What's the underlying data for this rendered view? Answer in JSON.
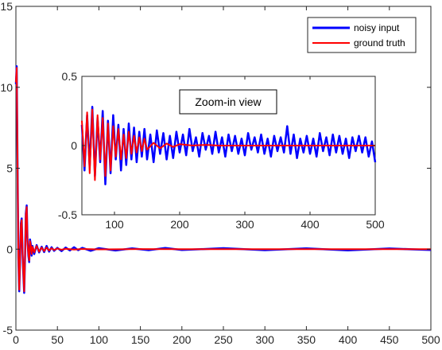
{
  "colors": {
    "noisy": "#0000ff",
    "truth": "#ff0000",
    "axis": "#262626",
    "background": "#ffffff"
  },
  "chart_data": [
    {
      "type": "line",
      "role": "main",
      "xlim": [
        0,
        500
      ],
      "ylim": [
        -5,
        15
      ],
      "xticks": [
        "0",
        "50",
        "100",
        "150",
        "200",
        "250",
        "300",
        "350",
        "400",
        "450",
        "500"
      ],
      "yticks": [
        "-5",
        "0",
        "5",
        "10",
        "15"
      ],
      "legend": {
        "placement": "top-right",
        "entries": [
          "noisy input",
          "ground truth"
        ]
      },
      "series": [
        {
          "name": "noisy input",
          "x": [
            0,
            1,
            2,
            3,
            4,
            5,
            6,
            7,
            8,
            9,
            10,
            11,
            12,
            13,
            14,
            15,
            16,
            17,
            18,
            19,
            20,
            22,
            25,
            28,
            31,
            34,
            37,
            40,
            43,
            46,
            50,
            55,
            60,
            65,
            70,
            75,
            80,
            90,
            100,
            120,
            140,
            160,
            180,
            200,
            250,
            300,
            350,
            400,
            450,
            500
          ],
          "y": [
            10.2,
            11.3,
            5.0,
            -0.5,
            -2.6,
            -0.8,
            1.6,
            1.9,
            -0.3,
            -1.6,
            -2.7,
            -0.5,
            2.2,
            2.7,
            0.5,
            -0.4,
            -0.8,
            0.6,
            0.3,
            -0.4,
            0.2,
            -0.3,
            0.25,
            -0.2,
            0.15,
            -0.18,
            0.2,
            -0.15,
            0.12,
            -0.1,
            0.08,
            -0.12,
            0.1,
            -0.08,
            0.12,
            -0.06,
            0.08,
            -0.1,
            0.06,
            -0.08,
            0.05,
            -0.06,
            0.07,
            -0.05,
            0.06,
            -0.06,
            0.05,
            -0.07,
            0.04,
            -0.05
          ]
        },
        {
          "name": "ground truth",
          "x": [
            0,
            1,
            2,
            3,
            4,
            5,
            6,
            7,
            8,
            9,
            10,
            11,
            12,
            13,
            14,
            15,
            16,
            17,
            18,
            19,
            20,
            22,
            25,
            28,
            31,
            34,
            37,
            40,
            43,
            46,
            50,
            55,
            60,
            70,
            80,
            100,
            150,
            200,
            300,
            400,
            500
          ],
          "y": [
            10.3,
            11.2,
            5.1,
            -0.4,
            -2.5,
            -0.7,
            1.5,
            1.8,
            -0.2,
            -1.5,
            -2.6,
            -0.4,
            2.1,
            2.6,
            0.4,
            -0.3,
            -0.7,
            0.5,
            0.2,
            -0.3,
            0.15,
            -0.2,
            0.2,
            -0.15,
            0.1,
            -0.12,
            0.1,
            -0.08,
            0.06,
            -0.05,
            0.04,
            -0.03,
            0.02,
            -0.02,
            0.01,
            -0.01,
            0.005,
            0,
            0,
            0,
            0
          ]
        }
      ]
    },
    {
      "type": "line",
      "role": "inset",
      "annotation": "Zoom-in view",
      "xlim": [
        50,
        500
      ],
      "ylim": [
        -0.5,
        0.5
      ],
      "xticks": [
        "100",
        "200",
        "300",
        "400",
        "500"
      ],
      "yticks": [
        "0.5",
        "0",
        "-0.5"
      ],
      "series": [
        {
          "name": "noisy input",
          "x": [
            50,
            54,
            58,
            62,
            66,
            70,
            74,
            78,
            82,
            86,
            90,
            94,
            98,
            102,
            106,
            110,
            114,
            118,
            122,
            126,
            130,
            134,
            138,
            142,
            146,
            150,
            155,
            160,
            165,
            170,
            175,
            180,
            185,
            190,
            195,
            200,
            205,
            210,
            215,
            220,
            225,
            230,
            235,
            240,
            245,
            250,
            255,
            260,
            265,
            270,
            275,
            280,
            285,
            290,
            295,
            300,
            305,
            310,
            315,
            320,
            325,
            330,
            335,
            340,
            345,
            350,
            355,
            360,
            365,
            370,
            375,
            380,
            385,
            390,
            395,
            400,
            405,
            410,
            415,
            420,
            425,
            430,
            435,
            440,
            445,
            450,
            455,
            460,
            465,
            470,
            475,
            480,
            485,
            490,
            495,
            500
          ],
          "y": [
            0.15,
            -0.18,
            0.22,
            -0.15,
            0.28,
            -0.22,
            0.2,
            -0.12,
            0.25,
            -0.28,
            0.18,
            -0.2,
            0.22,
            -0.1,
            0.15,
            -0.18,
            0.12,
            -0.14,
            0.16,
            -0.1,
            0.13,
            -0.12,
            0.1,
            -0.08,
            0.12,
            -0.1,
            0.08,
            -0.12,
            0.11,
            -0.06,
            0.09,
            -0.1,
            0.07,
            -0.09,
            0.1,
            -0.05,
            0.08,
            -0.07,
            0.12,
            -0.04,
            0.06,
            -0.08,
            0.09,
            -0.03,
            0.07,
            -0.06,
            0.1,
            -0.05,
            0.06,
            -0.08,
            0.08,
            -0.04,
            0.07,
            -0.06,
            0.05,
            -0.07,
            0.09,
            -0.03,
            0.06,
            -0.05,
            0.08,
            -0.06,
            0.05,
            -0.08,
            0.07,
            -0.04,
            0.06,
            -0.05,
            0.14,
            -0.06,
            0.08,
            -0.09,
            0.05,
            -0.05,
            0.07,
            -0.06,
            0.05,
            -0.08,
            0.09,
            -0.04,
            0.06,
            -0.07,
            0.08,
            -0.05,
            0.07,
            -0.06,
            0.05,
            -0.09,
            0.06,
            -0.04,
            0.07,
            -0.05,
            0.06,
            -0.08,
            0.03,
            -0.12
          ]
        },
        {
          "name": "ground truth",
          "x": [
            50,
            54,
            58,
            62,
            66,
            70,
            74,
            78,
            82,
            86,
            90,
            94,
            98,
            102,
            106,
            110,
            114,
            118,
            122,
            126,
            130,
            134,
            138,
            142,
            146,
            150,
            160,
            170,
            180,
            190,
            200,
            220,
            240,
            260,
            280,
            300,
            350,
            400,
            450,
            500
          ],
          "y": [
            0.18,
            -0.15,
            0.24,
            -0.2,
            0.26,
            -0.25,
            0.22,
            -0.1,
            0.2,
            -0.22,
            0.16,
            -0.18,
            0.14,
            -0.08,
            0.12,
            -0.1,
            0.08,
            -0.09,
            0.1,
            -0.06,
            0.07,
            -0.05,
            0.06,
            -0.04,
            0.05,
            -0.03,
            0.02,
            -0.02,
            0.015,
            -0.01,
            0.01,
            0,
            0.005,
            0,
            0,
            0,
            0,
            0,
            0,
            0
          ]
        }
      ]
    }
  ]
}
